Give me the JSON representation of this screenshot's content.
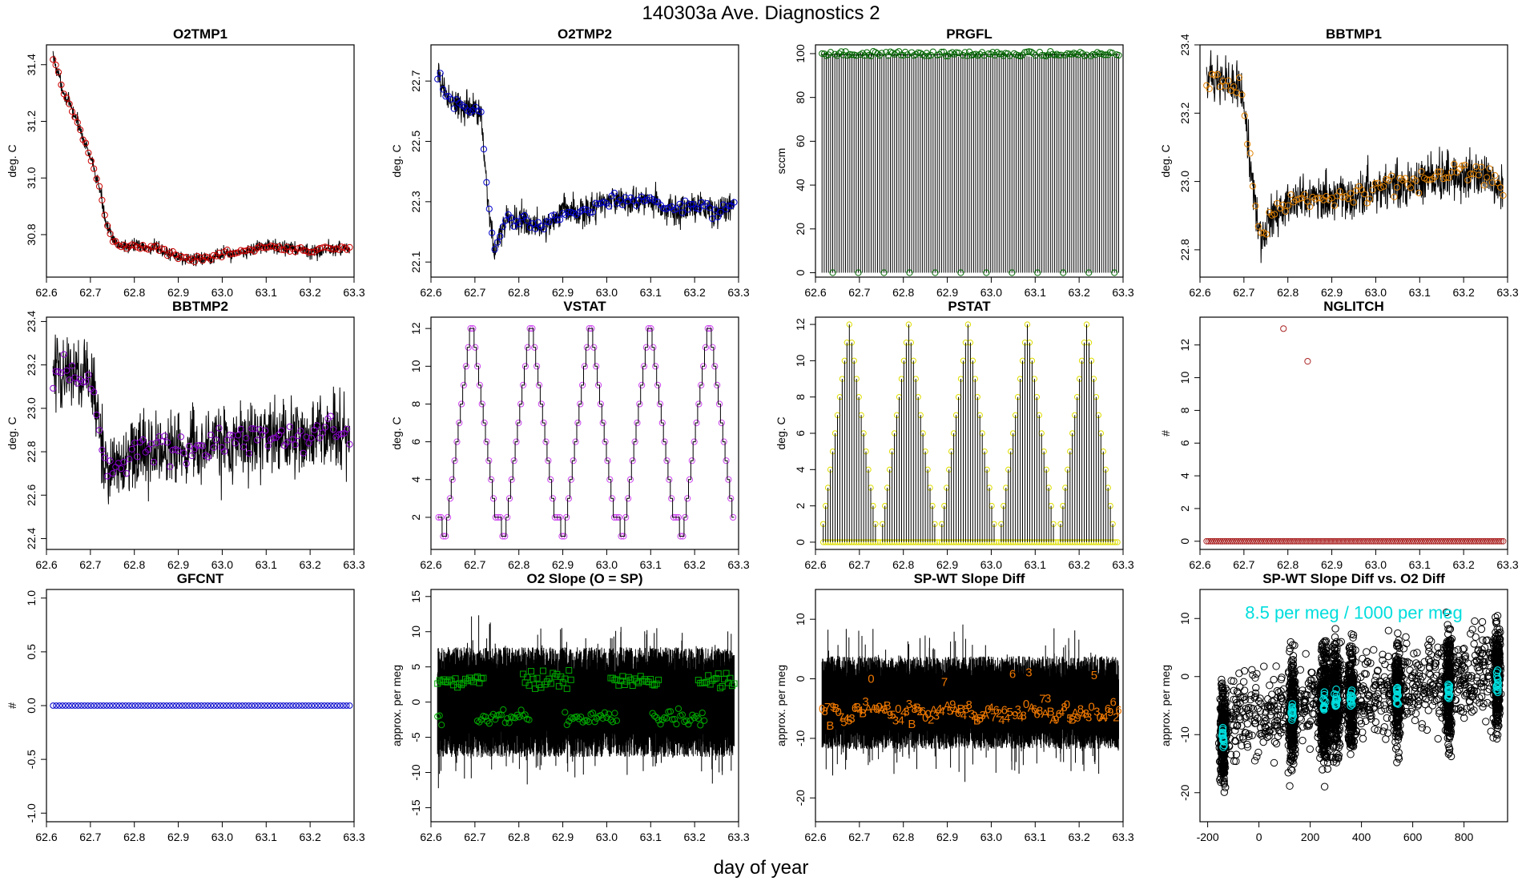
{
  "figure": {
    "title": "140303a   Ave. Diagnostics 2",
    "xlabel": "day of year"
  },
  "chart_data": [
    {
      "type": "line",
      "title": "O2TMP1",
      "ylabel": "deg. C",
      "xlim": [
        62.6,
        63.3
      ],
      "ylim": [
        30.65,
        31.47
      ],
      "xticks": [
        "62.6",
        "62.7",
        "62.8",
        "62.9",
        "63.0",
        "63.1",
        "63.2",
        "63.3"
      ],
      "yticks": [
        "30.8",
        "31.0",
        "31.2",
        "31.4"
      ],
      "ytick_values": [
        30.8,
        31.0,
        31.2,
        31.4
      ],
      "color": "#cc0000",
      "marker": "circle",
      "noise": 0.018,
      "line": "noisy",
      "series": {
        "x": [
          62.615,
          62.64,
          62.67,
          62.7,
          62.72,
          62.735,
          62.75,
          62.77,
          62.8,
          62.85,
          62.9,
          62.93,
          63.0,
          63.05,
          63.1,
          63.15,
          63.2,
          63.25,
          63.29
        ],
        "y": [
          31.43,
          31.3,
          31.2,
          31.07,
          30.97,
          30.85,
          30.78,
          30.76,
          30.76,
          30.75,
          30.72,
          30.71,
          30.73,
          30.74,
          30.76,
          30.75,
          30.74,
          30.75,
          30.75
        ]
      }
    },
    {
      "type": "line",
      "title": "O2TMP2",
      "ylabel": "deg. C",
      "xlim": [
        62.6,
        63.3
      ],
      "ylim": [
        22.05,
        22.82
      ],
      "xticks": [
        "62.6",
        "62.7",
        "62.8",
        "62.9",
        "63.0",
        "63.1",
        "63.2",
        "63.3"
      ],
      "yticks": [
        "22.1",
        "22.3",
        "22.5",
        "22.7"
      ],
      "ytick_values": [
        22.1,
        22.3,
        22.5,
        22.7
      ],
      "color": "#0000cc",
      "marker": "circle",
      "noise": 0.035,
      "line": "noisy",
      "series": {
        "x": [
          62.615,
          62.64,
          62.67,
          62.7,
          62.715,
          62.73,
          62.745,
          62.77,
          62.8,
          62.85,
          62.9,
          62.95,
          63.0,
          63.05,
          63.1,
          63.15,
          63.2,
          63.25,
          63.29
        ],
        "y": [
          22.72,
          22.64,
          22.62,
          22.6,
          22.58,
          22.3,
          22.14,
          22.25,
          22.24,
          22.21,
          22.27,
          22.26,
          22.31,
          22.3,
          22.31,
          22.27,
          22.29,
          22.26,
          22.29
        ]
      }
    },
    {
      "type": "line",
      "title": "PRGFL",
      "ylabel": "sccm",
      "xlim": [
        62.6,
        63.3
      ],
      "ylim": [
        -2,
        104
      ],
      "xticks": [
        "62.6",
        "62.7",
        "62.8",
        "62.9",
        "63.0",
        "63.1",
        "63.2",
        "63.3"
      ],
      "yticks": [
        "0",
        "20",
        "40",
        "60",
        "80",
        "100"
      ],
      "ytick_values": [
        0,
        20,
        40,
        60,
        80,
        100
      ],
      "color": "#006600",
      "marker": "circle",
      "line": "spikes",
      "spikes": {
        "x0": 62.615,
        "x1": 63.29,
        "n": 140,
        "high": 99.5,
        "low": 0,
        "low_every": 12
      }
    },
    {
      "type": "line",
      "title": "BBTMP1",
      "ylabel": "deg. C",
      "xlim": [
        62.6,
        63.3
      ],
      "ylim": [
        22.72,
        23.4
      ],
      "xticks": [
        "62.6",
        "62.7",
        "62.8",
        "62.9",
        "63.0",
        "63.1",
        "63.2",
        "63.3"
      ],
      "yticks": [
        "22.8",
        "23.0",
        "23.2",
        "23.4"
      ],
      "ytick_values": [
        22.8,
        23.0,
        23.2,
        23.4
      ],
      "color": "#e08000",
      "marker": "circle",
      "noise": 0.05,
      "line": "noisy",
      "series": {
        "x": [
          62.615,
          62.63,
          62.66,
          62.69,
          62.7,
          62.72,
          62.74,
          62.76,
          62.8,
          62.85,
          62.9,
          62.95,
          63.0,
          63.05,
          63.1,
          63.15,
          63.2,
          63.25,
          63.29
        ],
        "y": [
          23.3,
          23.31,
          23.29,
          23.28,
          23.22,
          22.98,
          22.82,
          22.9,
          22.94,
          22.95,
          22.96,
          22.95,
          22.98,
          22.99,
          23.0,
          23.01,
          23.02,
          23.03,
          22.98
        ]
      }
    },
    {
      "type": "line",
      "title": "BBTMP2",
      "ylabel": "deg. C",
      "xlim": [
        62.6,
        63.3
      ],
      "ylim": [
        22.35,
        23.42
      ],
      "xticks": [
        "62.6",
        "62.7",
        "62.8",
        "62.9",
        "63.0",
        "63.1",
        "63.2",
        "63.3"
      ],
      "yticks": [
        "22.4",
        "22.6",
        "22.8",
        "23.0",
        "23.2",
        "23.4"
      ],
      "ytick_values": [
        22.4,
        22.6,
        22.8,
        23.0,
        23.2,
        23.4
      ],
      "color": "#8800cc",
      "marker": "circle",
      "noise": 0.12,
      "line": "noisy",
      "series": {
        "x": [
          62.615,
          62.65,
          62.69,
          62.71,
          62.725,
          62.74,
          62.8,
          62.85,
          62.9,
          62.95,
          63.0,
          63.05,
          63.1,
          63.15,
          63.2,
          63.25,
          63.29
        ],
        "y": [
          23.17,
          23.16,
          23.15,
          23.08,
          22.85,
          22.72,
          22.79,
          22.81,
          22.82,
          22.83,
          22.84,
          22.85,
          22.86,
          22.86,
          22.88,
          22.9,
          22.89
        ]
      }
    },
    {
      "type": "line",
      "title": "VSTAT",
      "ylabel": "deg. C",
      "xlim": [
        62.6,
        63.3
      ],
      "ylim": [
        0.3,
        12.6
      ],
      "xticks": [
        "62.6",
        "62.7",
        "62.8",
        "62.9",
        "63.0",
        "63.1",
        "63.2",
        "63.3"
      ],
      "yticks": [
        "2",
        "4",
        "6",
        "8",
        "10",
        "12"
      ],
      "ytick_values": [
        2,
        4,
        6,
        8,
        10,
        12
      ],
      "color": "#cc44ee",
      "marker": "circle",
      "line": "steps",
      "steps": {
        "x0": 62.615,
        "x1": 63.29,
        "cycles": 5,
        "pattern": [
          2,
          2,
          1,
          1,
          2,
          3,
          4,
          5,
          6,
          7,
          8,
          9,
          10,
          11,
          12,
          12,
          11,
          10,
          9,
          8,
          7,
          6,
          5,
          4,
          3,
          2
        ]
      }
    },
    {
      "type": "line",
      "title": "PSTAT",
      "ylabel": "deg. C",
      "xlim": [
        62.6,
        63.3
      ],
      "ylim": [
        -0.4,
        12.4
      ],
      "xticks": [
        "62.6",
        "62.7",
        "62.8",
        "62.9",
        "63.0",
        "63.1",
        "63.2",
        "63.3"
      ],
      "yticks": [
        "0",
        "2",
        "4",
        "6",
        "8",
        "10",
        "12"
      ],
      "ytick_values": [
        0,
        2,
        4,
        6,
        8,
        10,
        12
      ],
      "color": "#dddd00",
      "marker": "circle",
      "line": "spiketri",
      "spiketri": {
        "x0": 62.615,
        "x1": 63.29,
        "cycles": 5,
        "pattern": [
          1,
          2,
          3,
          4,
          5,
          6,
          7,
          8,
          9,
          10,
          11,
          12,
          11,
          10,
          9,
          8,
          7,
          6,
          5,
          4,
          3,
          2,
          1
        ]
      }
    },
    {
      "type": "scatter",
      "title": "NGLITCH",
      "ylabel": "#",
      "xlim": [
        62.6,
        63.3
      ],
      "ylim": [
        -0.5,
        13.7
      ],
      "xticks": [
        "62.6",
        "62.7",
        "62.8",
        "62.9",
        "63.0",
        "63.1",
        "63.2",
        "63.3"
      ],
      "yticks": [
        "0",
        "2",
        "4",
        "6",
        "8",
        "10",
        "12"
      ],
      "ytick_values": [
        0,
        2,
        4,
        6,
        8,
        10,
        12
      ],
      "color": "#aa2222",
      "marker": "circle",
      "line": "none",
      "baseline": {
        "x0": 62.615,
        "x1": 63.29,
        "n": 150,
        "y": 0
      },
      "points": {
        "x": [
          62.79,
          62.845
        ],
        "y": [
          13,
          11
        ]
      }
    },
    {
      "type": "scatter",
      "title": "GFCNT",
      "ylabel": "#",
      "xlim": [
        62.6,
        63.3
      ],
      "ylim": [
        -1.08,
        1.08
      ],
      "xticks": [
        "62.6",
        "62.7",
        "62.8",
        "62.9",
        "63.0",
        "63.1",
        "63.2",
        "63.3"
      ],
      "yticks": [
        "-1.0",
        "-0.5",
        "0.0",
        "0.5",
        "1.0"
      ],
      "ytick_values": [
        -1.0,
        -0.5,
        0.0,
        0.5,
        1.0
      ],
      "color": "#0000cc",
      "marker": "circle",
      "line": "none",
      "baseline": {
        "x0": 62.615,
        "x1": 63.29,
        "n": 95,
        "y": 0
      }
    },
    {
      "type": "line",
      "title": "O2 Slope (O = SP)",
      "ylabel": "approx. per meg",
      "xlim": [
        62.6,
        63.3
      ],
      "ylim": [
        -17,
        16
      ],
      "xticks": [
        "62.6",
        "62.7",
        "62.8",
        "62.9",
        "63.0",
        "63.1",
        "63.2",
        "63.3"
      ],
      "yticks": [
        "-15",
        "-10",
        "-5",
        "0",
        "5",
        "10",
        "15"
      ],
      "ytick_values": [
        -15,
        -10,
        -5,
        0,
        5,
        10,
        15
      ],
      "color": "#00aa00",
      "line": "band",
      "band": {
        "x0": 62.615,
        "x1": 63.29,
        "center": 0,
        "amp": 6.5,
        "spike": 5
      },
      "markers": {
        "x0": 62.615,
        "x1": 63.29,
        "n": 150,
        "square_level": 3,
        "circle_level": -2.3,
        "jitter": 1.3
      }
    },
    {
      "type": "line",
      "title": "SP-WT Slope Diff",
      "ylabel": "approx. per meg",
      "xlim": [
        62.6,
        63.3
      ],
      "ylim": [
        -24,
        15
      ],
      "xticks": [
        "62.6",
        "62.7",
        "62.8",
        "62.9",
        "63.0",
        "63.1",
        "63.2",
        "63.3"
      ],
      "yticks": [
        "-20",
        "-10",
        "0",
        "10"
      ],
      "ytick_values": [
        -20,
        -10,
        0,
        10
      ],
      "color": "#ee7700",
      "line": "band",
      "band": {
        "x0": 62.615,
        "x1": 63.29,
        "center": -4,
        "amp": 6.5,
        "spike": 6
      },
      "labels": {
        "x0": 62.615,
        "x1": 63.29,
        "n": 110,
        "glyphs": [
          "5",
          "A",
          "B",
          "7",
          "3",
          "9",
          "6",
          "8",
          "0",
          "2",
          "4"
        ],
        "level": -5.5,
        "jitter": 2.6
      }
    },
    {
      "type": "scatter",
      "title": "SP-WT Slope Diff vs. O2 Diff",
      "ylabel": "approx. per meg",
      "xlim": [
        -230,
        970
      ],
      "ylim": [
        -25,
        15
      ],
      "xticks": [
        "-200",
        "0",
        "200",
        "400",
        "600",
        "800"
      ],
      "xtick_values": [
        -200,
        0,
        200,
        400,
        600,
        800
      ],
      "yticks": [
        "-20",
        "-10",
        "0",
        "10"
      ],
      "ytick_values": [
        -20,
        -10,
        0,
        10
      ],
      "color": "#00dddd",
      "annotation": "8.5 per meg / 1000 per meg",
      "clusters": [
        {
          "x": -140,
          "y": -10,
          "sx": 8,
          "sy": 5.5,
          "n": 300
        },
        {
          "x": 130,
          "y": -6,
          "sx": 8,
          "sy": 6,
          "n": 300
        },
        {
          "x": 255,
          "y": -5,
          "sx": 14,
          "sy": 6.5,
          "n": 420
        },
        {
          "x": 300,
          "y": -4,
          "sx": 12,
          "sy": 6.5,
          "n": 300
        },
        {
          "x": 360,
          "y": -4,
          "sx": 8,
          "sy": 6,
          "n": 260
        },
        {
          "x": 540,
          "y": -3.5,
          "sx": 8,
          "sy": 6,
          "n": 300
        },
        {
          "x": 740,
          "y": -2,
          "sx": 8,
          "sy": 6.5,
          "n": 300
        },
        {
          "x": 930,
          "y": -1,
          "sx": 8,
          "sy": 6,
          "n": 300
        }
      ],
      "scatter_noise": {
        "x0": -150,
        "x1": 940,
        "n": 900,
        "sy": 5,
        "y_slope": 0.0085,
        "y0": -6.5
      }
    }
  ]
}
